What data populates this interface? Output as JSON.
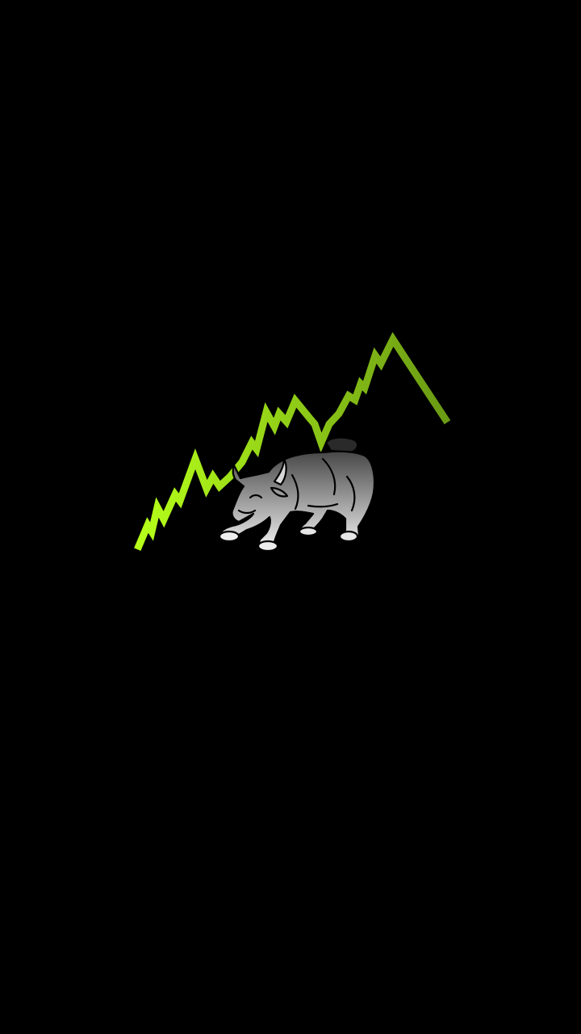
{
  "screen": {
    "type": "splash-screen",
    "background_color": "#000000"
  },
  "logo": {
    "icon": "bull-market-icon",
    "trend_line_color_start": "#b6ff1a",
    "trend_line_color_end": "#6a9a14",
    "bull_color_light": "#f2f2f2",
    "bull_color_dark": "#3a3a3a",
    "outline_color": "#000000"
  }
}
